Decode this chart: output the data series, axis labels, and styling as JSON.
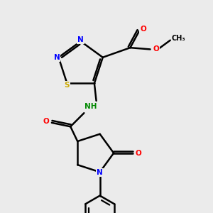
{
  "background_color": "#ebebeb",
  "bond_color": "#000000",
  "bond_width": 1.8,
  "atom_colors": {
    "N": "#0000ff",
    "O": "#ff0000",
    "S": "#ccaa00",
    "C": "#000000"
  },
  "figsize": [
    3.0,
    3.0
  ],
  "dpi": 100
}
